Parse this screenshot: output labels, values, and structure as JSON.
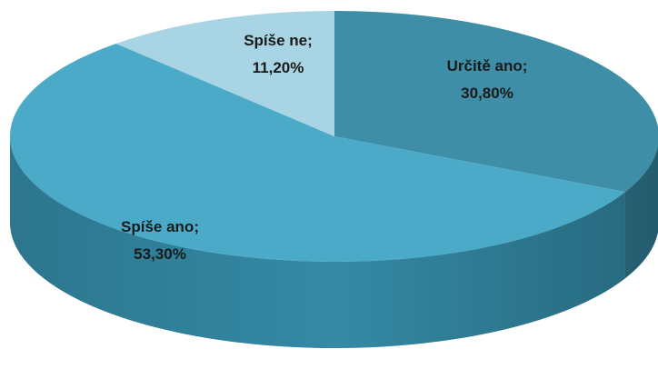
{
  "chart_data": {
    "type": "pie",
    "title": "",
    "slices": [
      {
        "label": "Určitě ano",
        "value": 30.8,
        "display": "30,80%",
        "color": "#3d8ea6",
        "side_color": "#2a6577"
      },
      {
        "label": "Spíše ano",
        "value": 53.3,
        "display": "53,30%",
        "color": "#4aaac8",
        "side_color": "#2f7e97"
      },
      {
        "label": "Spíše ne",
        "value": 11.2,
        "display": "11,20%",
        "color": "#a9d4e3",
        "side_color": "#7fb3c5"
      }
    ],
    "legend": "none",
    "style": "3d"
  }
}
